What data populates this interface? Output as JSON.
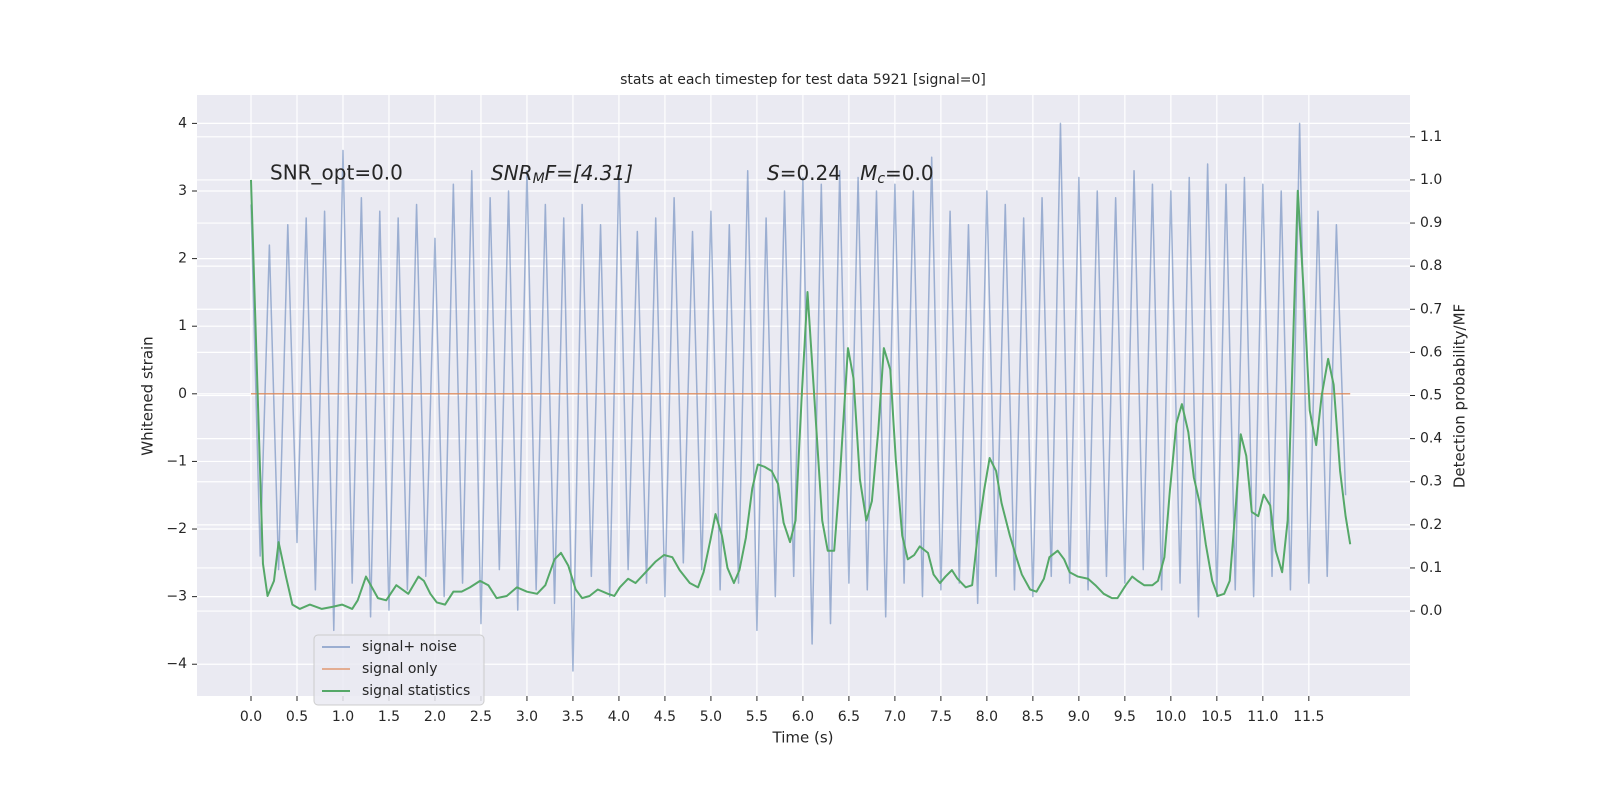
{
  "chart_data": {
    "type": "line",
    "title": "stats at each timestep for test data 5921 [signal=0]",
    "xlabel": "Time (s)",
    "ylabel": "Whitened strain",
    "y2label": "Detection probability/MF",
    "annotations": [
      [
        "SNR_opt=0.0"
      ],
      [
        "SNR",
        "M",
        "F=[4.31]"
      ],
      [
        "S",
        "=0.24   ",
        "M",
        "c",
        "=0.0"
      ]
    ],
    "legend": "lower left",
    "grid": true,
    "xlim": [
      -0.587,
      12.6
    ],
    "ylim": [
      -4.47,
      4.42
    ],
    "y2lim": [
      -0.197,
      1.197
    ],
    "xticks": [
      {
        "value": 0,
        "label": "0.0"
      },
      0.5,
      {
        "value": 1,
        "label": "1.0"
      },
      1.5,
      {
        "value": 2,
        "label": "2.0"
      },
      2.5,
      {
        "value": 3,
        "label": "3.0"
      },
      3.5,
      {
        "value": 4,
        "label": "4.0"
      },
      4.5,
      {
        "value": 5,
        "label": "5.0"
      },
      5.5,
      {
        "value": 6,
        "label": "6.0"
      },
      6.5,
      {
        "value": 7,
        "label": "7.0"
      },
      7.5,
      {
        "value": 8,
        "label": "8.0"
      },
      8.5,
      {
        "value": 9,
        "label": "9.0"
      },
      9.5,
      {
        "value": 10,
        "label": "10.0"
      },
      10.5,
      {
        "value": 11,
        "label": "11.0"
      },
      11.5
    ],
    "yticks": [
      {
        "value": -4,
        "label": "−4"
      },
      {
        "value": -3,
        "label": "−3"
      },
      {
        "value": -2,
        "label": "−2"
      },
      {
        "value": -1,
        "label": "−1"
      },
      0,
      1,
      2,
      3,
      4
    ],
    "y2ticks": [
      {
        "value": 0,
        "label": "0.0"
      },
      0.1,
      0.2,
      0.3,
      0.4,
      0.5,
      0.6,
      0.7,
      0.8,
      0.9,
      {
        "value": 1,
        "label": "1.0"
      },
      1.1
    ],
    "series": [
      {
        "name": "signal+ noise",
        "color": "#4c72b0",
        "x": [
          0.0,
          0.1,
          0.2,
          0.3,
          0.4,
          0.5,
          0.6,
          0.7,
          0.8,
          0.9,
          1.0,
          1.1,
          1.2,
          1.3,
          1.4,
          1.5,
          1.6,
          1.7,
          1.8,
          1.9,
          2.0,
          2.1,
          2.2,
          2.3,
          2.4,
          2.5,
          2.6,
          2.7,
          2.8,
          2.9,
          3.0,
          3.1,
          3.2,
          3.3,
          3.4,
          3.5,
          3.6,
          3.7,
          3.8,
          3.9,
          4.0,
          4.1,
          4.2,
          4.3,
          4.4,
          4.5,
          4.6,
          4.7,
          4.8,
          4.9,
          5.0,
          5.1,
          5.2,
          5.3,
          5.4,
          5.5,
          5.6,
          5.7,
          5.8,
          5.9,
          6.0,
          6.1,
          6.2,
          6.3,
          6.4,
          6.5,
          6.6,
          6.7,
          6.8,
          6.9,
          7.0,
          7.1,
          7.2,
          7.3,
          7.4,
          7.5,
          7.6,
          7.7,
          7.8,
          7.9,
          8.0,
          8.1,
          8.2,
          8.3,
          8.4,
          8.5,
          8.6,
          8.7,
          8.8,
          8.9,
          9.0,
          9.1,
          9.2,
          9.3,
          9.4,
          9.5,
          9.6,
          9.7,
          9.8,
          9.9,
          10.0,
          10.1,
          10.2,
          10.3,
          10.4,
          10.5,
          10.6,
          10.7,
          10.8,
          10.9,
          11.0,
          11.1,
          11.2,
          11.3,
          11.4,
          11.5,
          11.6,
          11.7,
          11.8,
          11.9
        ],
        "values": [
          2.8,
          -2.4,
          2.2,
          -2.6,
          2.5,
          -2.2,
          2.6,
          -2.9,
          2.7,
          -3.5,
          3.6,
          -2.8,
          2.9,
          -3.3,
          2.7,
          -3.2,
          2.6,
          -2.9,
          2.8,
          -2.7,
          2.3,
          -3.0,
          3.1,
          -2.8,
          3.3,
          -3.4,
          2.9,
          -2.6,
          3.0,
          -3.2,
          3.3,
          -2.9,
          2.8,
          -3.1,
          2.6,
          -4.1,
          2.8,
          -2.7,
          2.5,
          -3.0,
          3.3,
          -2.6,
          2.4,
          -2.8,
          2.6,
          -3.0,
          2.9,
          -2.5,
          2.4,
          -2.6,
          2.7,
          -2.9,
          2.5,
          -2.8,
          3.3,
          -3.5,
          2.6,
          -3.0,
          3.0,
          -2.7,
          3.2,
          -3.7,
          3.1,
          -3.4,
          3.3,
          -2.8,
          3.2,
          -2.9,
          3.0,
          -3.3,
          3.1,
          -2.8,
          3.0,
          -3.0,
          3.5,
          -2.9,
          2.7,
          -2.8,
          2.5,
          -3.1,
          3.0,
          -2.7,
          2.8,
          -2.9,
          2.6,
          -3.0,
          2.9,
          -2.7,
          4.0,
          -2.8,
          3.2,
          -2.9,
          3.0,
          -2.7,
          2.9,
          -2.8,
          3.3,
          -2.6,
          3.1,
          -2.9,
          3.0,
          -2.8,
          3.2,
          -3.3,
          3.4,
          -3.0,
          3.1,
          -2.9,
          3.2,
          -3.0,
          3.1,
          -2.7,
          3.0,
          -2.9,
          4.0,
          -2.8,
          2.7,
          -2.7,
          2.5,
          -1.5
        ]
      },
      {
        "name": "signal only",
        "color": "#dd8452",
        "x": [
          0.0,
          11.95
        ],
        "values": [
          0,
          0
        ]
      },
      {
        "name": "signal statistics",
        "color": "#55a868",
        "axis": "y2",
        "x": [
          0,
          0.13,
          0.18,
          0.25,
          0.3,
          0.38,
          0.45,
          0.53,
          0.64,
          0.77,
          0.89,
          0.99,
          1.1,
          1.16,
          1.25,
          1.38,
          1.47,
          1.58,
          1.71,
          1.82,
          1.88,
          1.95,
          2.02,
          2.11,
          2.2,
          2.29,
          2.38,
          2.49,
          2.58,
          2.67,
          2.78,
          2.89,
          3.0,
          3.11,
          3.2,
          3.3,
          3.37,
          3.45,
          3.53,
          3.6,
          3.68,
          3.77,
          3.88,
          3.95,
          4.01,
          4.1,
          4.18,
          4.29,
          4.4,
          4.49,
          4.58,
          4.66,
          4.77,
          4.86,
          4.92,
          4.99,
          5.05,
          5.12,
          5.18,
          5.25,
          5.31,
          5.38,
          5.45,
          5.51,
          5.58,
          5.66,
          5.73,
          5.79,
          5.86,
          5.92,
          5.99,
          6.05,
          6.12,
          6.21,
          6.27,
          6.34,
          6.4,
          6.49,
          6.55,
          6.62,
          6.69,
          6.75,
          6.82,
          6.88,
          6.95,
          7.01,
          7.08,
          7.14,
          7.21,
          7.27,
          7.36,
          7.42,
          7.49,
          7.55,
          7.62,
          7.68,
          7.77,
          7.84,
          7.9,
          7.97,
          8.03,
          8.1,
          8.16,
          8.25,
          8.32,
          8.38,
          8.47,
          8.54,
          8.62,
          8.68,
          8.77,
          8.84,
          8.9,
          8.99,
          9.1,
          9.18,
          9.27,
          9.36,
          9.42,
          9.51,
          9.58,
          9.64,
          9.71,
          9.8,
          9.86,
          9.93,
          9.99,
          10.06,
          10.12,
          10.19,
          10.25,
          10.32,
          10.38,
          10.45,
          10.51,
          10.58,
          10.64,
          10.71,
          10.76,
          10.82,
          10.88,
          10.95,
          11.01,
          11.08,
          11.14,
          11.21,
          11.27,
          11.34,
          11.38,
          11.45,
          11.51,
          11.58,
          11.64,
          11.71,
          11.77,
          11.84,
          11.9,
          11.95
        ],
        "values": [
          1.0,
          0.11,
          0.035,
          0.07,
          0.16,
          0.08,
          0.015,
          0.005,
          0.015,
          0.005,
          0.01,
          0.015,
          0.005,
          0.025,
          0.08,
          0.03,
          0.025,
          0.06,
          0.04,
          0.08,
          0.07,
          0.04,
          0.02,
          0.015,
          0.045,
          0.045,
          0.055,
          0.07,
          0.06,
          0.03,
          0.035,
          0.055,
          0.045,
          0.04,
          0.06,
          0.12,
          0.135,
          0.105,
          0.05,
          0.03,
          0.035,
          0.05,
          0.04,
          0.035,
          0.055,
          0.075,
          0.065,
          0.09,
          0.115,
          0.13,
          0.125,
          0.095,
          0.065,
          0.055,
          0.09,
          0.16,
          0.225,
          0.175,
          0.1,
          0.065,
          0.095,
          0.17,
          0.285,
          0.34,
          0.335,
          0.325,
          0.295,
          0.205,
          0.16,
          0.21,
          0.51,
          0.74,
          0.51,
          0.21,
          0.14,
          0.14,
          0.305,
          0.61,
          0.54,
          0.305,
          0.21,
          0.255,
          0.42,
          0.61,
          0.56,
          0.35,
          0.175,
          0.12,
          0.13,
          0.15,
          0.135,
          0.085,
          0.065,
          0.08,
          0.095,
          0.075,
          0.055,
          0.06,
          0.175,
          0.28,
          0.355,
          0.325,
          0.25,
          0.175,
          0.125,
          0.085,
          0.05,
          0.045,
          0.075,
          0.125,
          0.14,
          0.12,
          0.09,
          0.08,
          0.075,
          0.06,
          0.04,
          0.03,
          0.03,
          0.06,
          0.08,
          0.07,
          0.06,
          0.06,
          0.07,
          0.125,
          0.28,
          0.435,
          0.48,
          0.415,
          0.31,
          0.245,
          0.155,
          0.07,
          0.035,
          0.04,
          0.07,
          0.255,
          0.41,
          0.36,
          0.23,
          0.22,
          0.27,
          0.245,
          0.14,
          0.09,
          0.21,
          0.7,
          0.975,
          0.72,
          0.465,
          0.385,
          0.5,
          0.585,
          0.525,
          0.325,
          0.22,
          0.155
        ]
      }
    ]
  }
}
